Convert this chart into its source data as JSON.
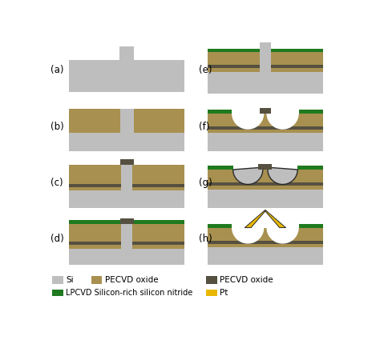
{
  "colors": {
    "si": "#bebebe",
    "tan": "#a89050",
    "dark": "#555040",
    "green": "#1f7a1f",
    "yellow": "#e8b800",
    "white": "#ffffff",
    "bg": "#ffffff",
    "outline": "#2a2a2a"
  },
  "legend": {
    "si_label": "Si",
    "tan_label": "PECVD oxide",
    "green_label": "LPCVD Silicon-rich silicon nitride",
    "dark_label": "PECVD oxide",
    "pt_label": "Pt"
  },
  "fig_w": 4.74,
  "fig_h": 4.4,
  "dpi": 100
}
